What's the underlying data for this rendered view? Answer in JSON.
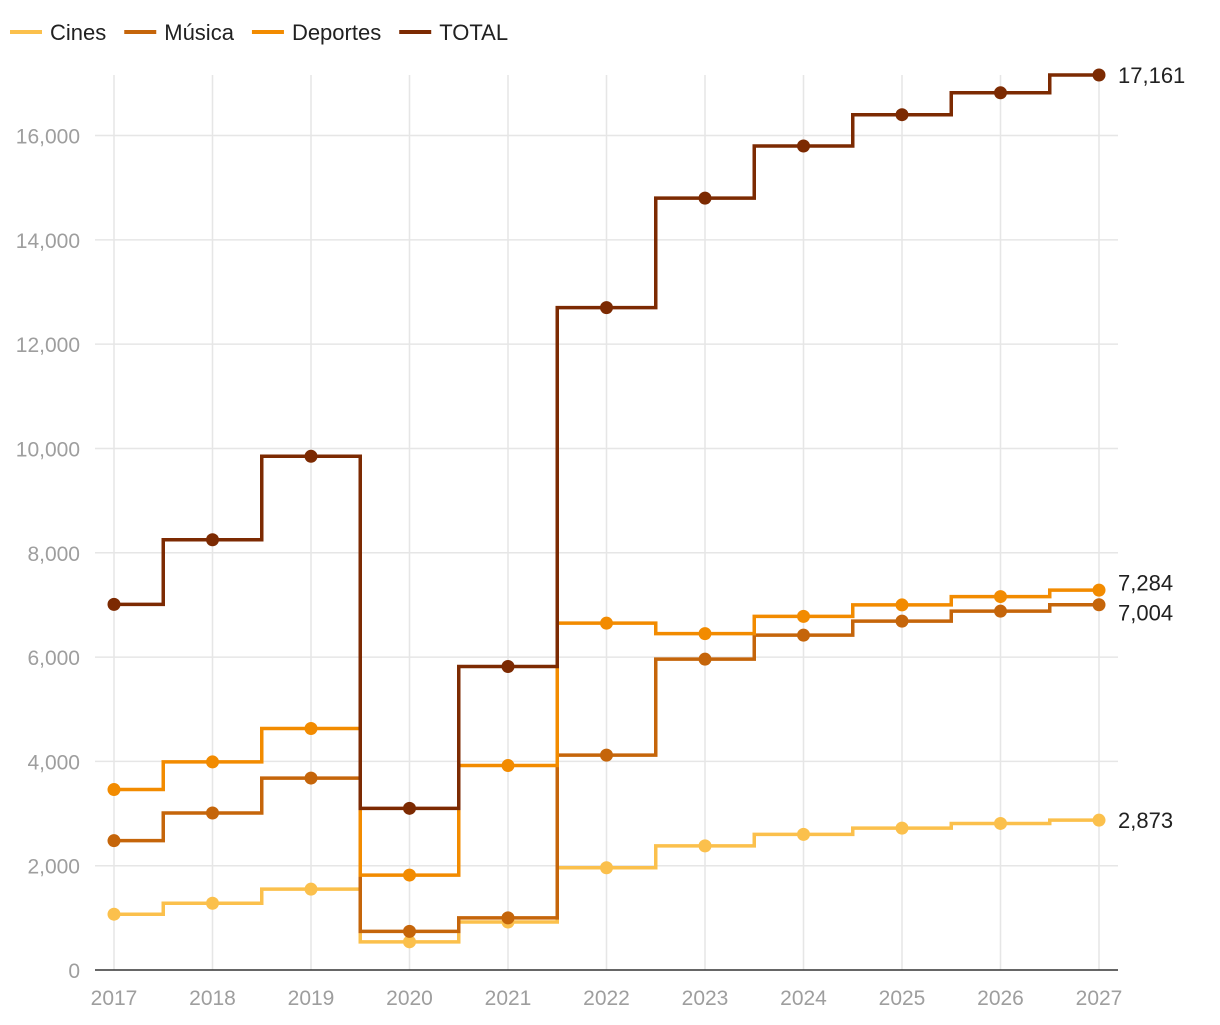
{
  "chart_data": {
    "type": "line",
    "title": "",
    "xlabel": "",
    "ylabel": "",
    "x": [
      2017,
      2018,
      2019,
      2020,
      2021,
      2022,
      2023,
      2024,
      2025,
      2026,
      2027
    ],
    "y_ticks": [
      "0",
      "2,000",
      "4,000",
      "6,000",
      "8,000",
      "10,000",
      "12,000",
      "14,000",
      "16,000"
    ],
    "y_tick_values": [
      0,
      2000,
      4000,
      6000,
      8000,
      10000,
      12000,
      14000,
      16000
    ],
    "ylim": [
      0,
      17161
    ],
    "grid": true,
    "legend_position": "top-left",
    "line_style": "step-center",
    "series": [
      {
        "name": "Cines",
        "color": "#fbc04c",
        "values": [
          1070,
          1280,
          1550,
          540,
          920,
          1960,
          2380,
          2600,
          2720,
          2810,
          2873
        ],
        "end_label": "2,873"
      },
      {
        "name": "Música",
        "color": "#c5650a",
        "values": [
          2480,
          3010,
          3680,
          740,
          1000,
          4120,
          5960,
          6420,
          6690,
          6880,
          7004
        ],
        "end_label": "7,004"
      },
      {
        "name": "Deportes",
        "color": "#f28b00",
        "values": [
          3460,
          3990,
          4630,
          1820,
          3920,
          6650,
          6450,
          6780,
          7000,
          7160,
          7284
        ],
        "end_label": "7,284"
      },
      {
        "name": "TOTAL",
        "color": "#7c2a02",
        "values": [
          7010,
          8250,
          9850,
          3100,
          5820,
          12700,
          14800,
          15800,
          16400,
          16820,
          17161
        ],
        "end_label": "17,161"
      }
    ]
  }
}
